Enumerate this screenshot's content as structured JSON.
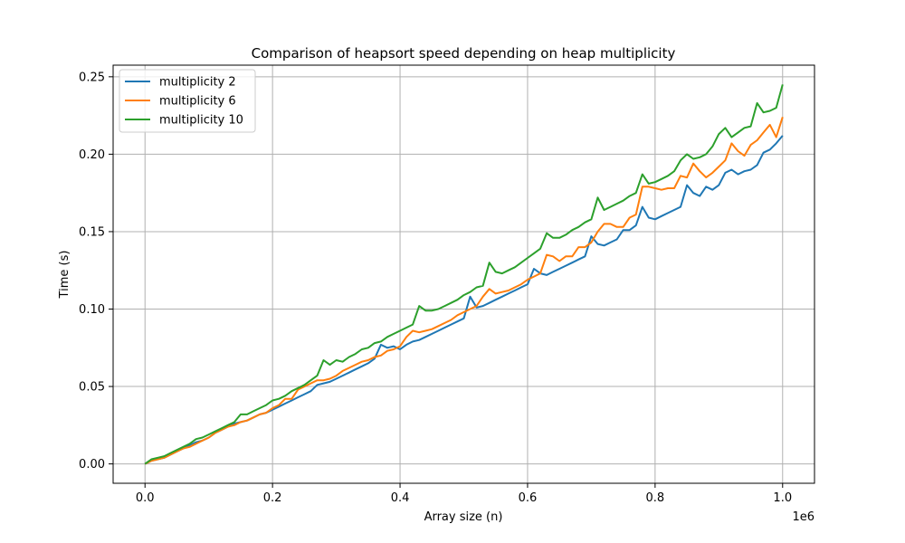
{
  "chart_data": {
    "type": "line",
    "title": "Comparison of heapsort speed depending on heap multiplicity",
    "xlabel": "Array size (n)",
    "ylabel": "Time (s)",
    "x_offset_label": "1e6",
    "xlim": [
      -0.05,
      1.05
    ],
    "ylim": [
      -0.0125,
      0.2575
    ],
    "x_ticks": [
      0.0,
      0.2,
      0.4,
      0.6,
      0.8,
      1.0
    ],
    "x_tick_labels": [
      "0.0",
      "0.2",
      "0.4",
      "0.6",
      "0.8",
      "1.0"
    ],
    "y_ticks": [
      0.0,
      0.05,
      0.1,
      0.15,
      0.2,
      0.25
    ],
    "y_tick_labels": [
      "0.00",
      "0.05",
      "0.10",
      "0.15",
      "0.20",
      "0.25"
    ],
    "grid": true,
    "legend_position": "top-left",
    "x": [
      0.0,
      0.01,
      0.02,
      0.03,
      0.04,
      0.05,
      0.06,
      0.07,
      0.08,
      0.09,
      0.1,
      0.11,
      0.12,
      0.13,
      0.14,
      0.15,
      0.16,
      0.17,
      0.18,
      0.19,
      0.2,
      0.21,
      0.22,
      0.23,
      0.24,
      0.25,
      0.26,
      0.27,
      0.28,
      0.29,
      0.3,
      0.31,
      0.32,
      0.33,
      0.34,
      0.35,
      0.36,
      0.37,
      0.38,
      0.39,
      0.4,
      0.41,
      0.42,
      0.43,
      0.44,
      0.45,
      0.46,
      0.47,
      0.48,
      0.49,
      0.5,
      0.51,
      0.52,
      0.53,
      0.54,
      0.55,
      0.56,
      0.57,
      0.58,
      0.59,
      0.6,
      0.61,
      0.62,
      0.63,
      0.64,
      0.65,
      0.66,
      0.67,
      0.68,
      0.69,
      0.7,
      0.71,
      0.72,
      0.73,
      0.74,
      0.75,
      0.76,
      0.77,
      0.78,
      0.79,
      0.8,
      0.81,
      0.82,
      0.83,
      0.84,
      0.85,
      0.86,
      0.87,
      0.88,
      0.89,
      0.9,
      0.91,
      0.92,
      0.93,
      0.94,
      0.95,
      0.96,
      0.97,
      0.98,
      0.99,
      1.0
    ],
    "series": [
      {
        "name": "multiplicity 2",
        "color": "#1f77b4",
        "values": [
          0.0,
          0.002,
          0.003,
          0.004,
          0.006,
          0.008,
          0.01,
          0.012,
          0.014,
          0.015,
          0.017,
          0.02,
          0.022,
          0.024,
          0.026,
          0.027,
          0.028,
          0.03,
          0.032,
          0.033,
          0.035,
          0.037,
          0.039,
          0.041,
          0.043,
          0.045,
          0.047,
          0.051,
          0.052,
          0.053,
          0.055,
          0.057,
          0.059,
          0.061,
          0.063,
          0.065,
          0.068,
          0.077,
          0.075,
          0.076,
          0.074,
          0.077,
          0.079,
          0.08,
          0.082,
          0.084,
          0.086,
          0.088,
          0.09,
          0.092,
          0.094,
          0.108,
          0.101,
          0.102,
          0.104,
          0.106,
          0.108,
          0.11,
          0.112,
          0.114,
          0.116,
          0.126,
          0.123,
          0.122,
          0.124,
          0.126,
          0.128,
          0.13,
          0.132,
          0.134,
          0.147,
          0.142,
          0.141,
          0.143,
          0.145,
          0.151,
          0.151,
          0.154,
          0.166,
          0.159,
          0.158,
          0.16,
          0.162,
          0.164,
          0.166,
          0.18,
          0.175,
          0.173,
          0.179,
          0.177,
          0.18,
          0.188,
          0.19,
          0.187,
          0.189,
          0.19,
          0.193,
          0.201,
          0.203,
          0.207,
          0.212
        ]
      },
      {
        "name": "multiplicity 6",
        "color": "#ff7f0e",
        "values": [
          0.0,
          0.002,
          0.003,
          0.004,
          0.006,
          0.008,
          0.01,
          0.011,
          0.013,
          0.015,
          0.017,
          0.02,
          0.022,
          0.024,
          0.025,
          0.027,
          0.028,
          0.03,
          0.032,
          0.033,
          0.036,
          0.038,
          0.042,
          0.042,
          0.048,
          0.05,
          0.052,
          0.054,
          0.054,
          0.055,
          0.057,
          0.06,
          0.062,
          0.064,
          0.066,
          0.067,
          0.069,
          0.07,
          0.073,
          0.074,
          0.076,
          0.082,
          0.086,
          0.085,
          0.086,
          0.087,
          0.089,
          0.091,
          0.093,
          0.096,
          0.098,
          0.1,
          0.102,
          0.108,
          0.113,
          0.11,
          0.111,
          0.112,
          0.114,
          0.116,
          0.119,
          0.121,
          0.123,
          0.135,
          0.134,
          0.131,
          0.134,
          0.134,
          0.14,
          0.14,
          0.143,
          0.15,
          0.155,
          0.155,
          0.153,
          0.153,
          0.159,
          0.161,
          0.179,
          0.179,
          0.178,
          0.177,
          0.178,
          0.178,
          0.186,
          0.185,
          0.194,
          0.189,
          0.185,
          0.188,
          0.192,
          0.196,
          0.207,
          0.202,
          0.199,
          0.206,
          0.209,
          0.214,
          0.219,
          0.211,
          0.224
        ]
      },
      {
        "name": "multiplicity 10",
        "color": "#2ca02c",
        "values": [
          0.0,
          0.003,
          0.004,
          0.005,
          0.007,
          0.009,
          0.011,
          0.013,
          0.016,
          0.017,
          0.019,
          0.021,
          0.023,
          0.025,
          0.027,
          0.032,
          0.032,
          0.034,
          0.036,
          0.038,
          0.041,
          0.042,
          0.044,
          0.047,
          0.049,
          0.051,
          0.054,
          0.057,
          0.067,
          0.064,
          0.067,
          0.066,
          0.069,
          0.071,
          0.074,
          0.075,
          0.078,
          0.079,
          0.082,
          0.084,
          0.086,
          0.088,
          0.09,
          0.102,
          0.099,
          0.099,
          0.1,
          0.102,
          0.104,
          0.106,
          0.109,
          0.111,
          0.114,
          0.115,
          0.13,
          0.124,
          0.123,
          0.125,
          0.127,
          0.13,
          0.133,
          0.136,
          0.139,
          0.149,
          0.146,
          0.146,
          0.148,
          0.151,
          0.153,
          0.156,
          0.158,
          0.172,
          0.164,
          0.166,
          0.168,
          0.17,
          0.173,
          0.175,
          0.187,
          0.181,
          0.182,
          0.184,
          0.186,
          0.189,
          0.196,
          0.2,
          0.197,
          0.198,
          0.2,
          0.205,
          0.213,
          0.217,
          0.211,
          0.214,
          0.217,
          0.218,
          0.233,
          0.227,
          0.228,
          0.23,
          0.245
        ]
      }
    ]
  }
}
